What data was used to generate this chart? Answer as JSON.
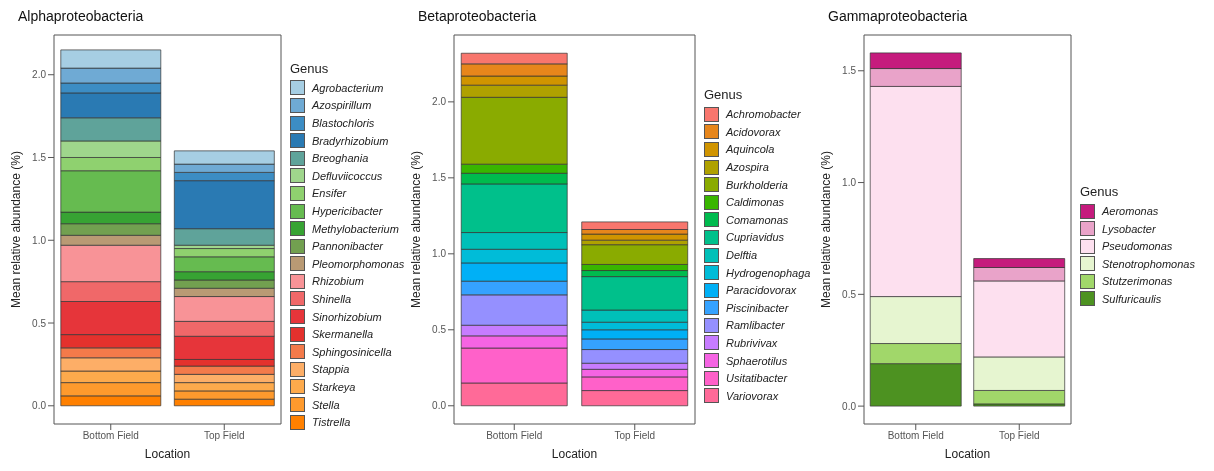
{
  "chart_data": [
    {
      "type": "bar",
      "stacked": true,
      "title": "Alphaproteobacteria",
      "xlabel": "Location",
      "ylabel": "Mean relative abundance (%)",
      "legend_title": "Genus",
      "legend": "right",
      "categories": [
        "Bottom Field",
        "Top Field"
      ],
      "ylim": [
        -0.11,
        2.24
      ],
      "yticks": [
        {
          "value": 0,
          "label": "0.0"
        },
        {
          "value": 0.5,
          "label": "0.5"
        },
        {
          "value": 1,
          "label": "1.0"
        },
        {
          "value": 1.5,
          "label": "1.5"
        },
        {
          "value": 2,
          "label": "2.0"
        }
      ],
      "series": [
        {
          "name": "Tistrella",
          "color": "#ff8000",
          "values": [
            0.06,
            0.04
          ]
        },
        {
          "name": "Stella",
          "color": "#fe9a2d",
          "values": [
            0.08,
            0.05
          ]
        },
        {
          "name": "Starkeya",
          "color": "#fdaa4c",
          "values": [
            0.07,
            0.05
          ]
        },
        {
          "name": "Stappia",
          "color": "#fdae67",
          "values": [
            0.08,
            0.05
          ]
        },
        {
          "name": "Sphingosinicella",
          "color": "#f37a4a",
          "values": [
            0.06,
            0.05
          ]
        },
        {
          "name": "Skermanella",
          "color": "#e4312d",
          "values": [
            0.08,
            0.04
          ]
        },
        {
          "name": "Sinorhizobium",
          "color": "#e6353a",
          "values": [
            0.2,
            0.14
          ]
        },
        {
          "name": "Shinella",
          "color": "#f06869",
          "values": [
            0.12,
            0.09
          ]
        },
        {
          "name": "Rhizobium",
          "color": "#f89397",
          "values": [
            0.22,
            0.15
          ]
        },
        {
          "name": "Pleomorphomonas",
          "color": "#b99a74",
          "values": [
            0.06,
            0.05
          ]
        },
        {
          "name": "Pannonibacter",
          "color": "#72a050",
          "values": [
            0.07,
            0.05
          ]
        },
        {
          "name": "Methylobacterium",
          "color": "#37a333",
          "values": [
            0.07,
            0.05
          ]
        },
        {
          "name": "Hypericibacter",
          "color": "#66bb50",
          "values": [
            0.25,
            0.09
          ]
        },
        {
          "name": "Ensifer",
          "color": "#8fd16f",
          "values": [
            0.08,
            0.05
          ]
        },
        {
          "name": "Defluviicoccus",
          "color": "#9fd68c",
          "values": [
            0.1,
            0.02
          ]
        },
        {
          "name": "Breoghania",
          "color": "#5fa39a",
          "values": [
            0.14,
            0.1
          ]
        },
        {
          "name": "Bradyrhizobium",
          "color": "#2a7ab3",
          "values": [
            0.15,
            0.29
          ]
        },
        {
          "name": "Blastochloris",
          "color": "#3c8dc4",
          "values": [
            0.06,
            0.05
          ]
        },
        {
          "name": "Azospirillum",
          "color": "#6faad4",
          "values": [
            0.09,
            0.05
          ]
        },
        {
          "name": "Agrobacterium",
          "color": "#a6cee3",
          "values": [
            0.11,
            0.08
          ]
        }
      ]
    },
    {
      "type": "bar",
      "stacked": true,
      "title": "Betaproteobacteria",
      "xlabel": "Location",
      "ylabel": "Mean relative abundance (%)",
      "legend_title": "Genus",
      "legend": "right",
      "categories": [
        "Bottom Field",
        "Top Field"
      ],
      "ylim": [
        -0.12,
        2.44
      ],
      "yticks": [
        {
          "value": 0,
          "label": "0.0"
        },
        {
          "value": 0.5,
          "label": "0.5"
        },
        {
          "value": 1,
          "label": "1.0"
        },
        {
          "value": 1.5,
          "label": "1.5"
        },
        {
          "value": 2,
          "label": "2.0"
        }
      ],
      "series": [
        {
          "name": "Variovorax",
          "color": "#ff6a98",
          "values": [
            0.15,
            0.1
          ]
        },
        {
          "name": "Usitatibacter",
          "color": "#ff61c9",
          "values": [
            0.23,
            0.09
          ]
        },
        {
          "name": "Sphaerotilus",
          "color": "#f564e3",
          "values": [
            0.08,
            0.05
          ]
        },
        {
          "name": "Rubrivivax",
          "color": "#c77cff",
          "values": [
            0.07,
            0.04
          ]
        },
        {
          "name": "Ramlibacter",
          "color": "#9590ff",
          "values": [
            0.2,
            0.09
          ]
        },
        {
          "name": "Piscinibacter",
          "color": "#35a2ff",
          "values": [
            0.09,
            0.07
          ]
        },
        {
          "name": "Paracidovorax",
          "color": "#00b0f6",
          "values": [
            0.12,
            0.06
          ]
        },
        {
          "name": "Hydrogenophaga",
          "color": "#00bcd8",
          "values": [
            0.09,
            0.05
          ]
        },
        {
          "name": "Delftia",
          "color": "#00c0b8",
          "values": [
            0.11,
            0.08
          ]
        },
        {
          "name": "Cupriavidus",
          "color": "#00c08b",
          "values": [
            0.32,
            0.22
          ]
        },
        {
          "name": "Comamonas",
          "color": "#00bb4e",
          "values": [
            0.07,
            0.04
          ]
        },
        {
          "name": "Caldimonas",
          "color": "#39b600",
          "values": [
            0.06,
            0.04
          ]
        },
        {
          "name": "Burkholderia",
          "color": "#8aab00",
          "values": [
            0.44,
            0.13
          ]
        },
        {
          "name": "Azospira",
          "color": "#afa100",
          "values": [
            0.08,
            0.03
          ]
        },
        {
          "name": "Aquincola",
          "color": "#d09400",
          "values": [
            0.06,
            0.04
          ]
        },
        {
          "name": "Acidovorax",
          "color": "#e7861b",
          "values": [
            0.08,
            0.03
          ]
        },
        {
          "name": "Achromobacter",
          "color": "#f8766d",
          "values": [
            0.07,
            0.05
          ]
        }
      ]
    },
    {
      "type": "bar",
      "stacked": true,
      "title": "Gammaproteobacteria",
      "xlabel": "Location",
      "ylabel": "Mean relative abundance (%)",
      "legend_title": "Genus",
      "legend": "right",
      "categories": [
        "Bottom Field",
        "Top Field"
      ],
      "ylim": [
        -0.08,
        1.66
      ],
      "yticks": [
        {
          "value": 0,
          "label": "0.0"
        },
        {
          "value": 0.5,
          "label": "0.5"
        },
        {
          "value": 1,
          "label": "1.0"
        },
        {
          "value": 1.5,
          "label": "1.5"
        }
      ],
      "series": [
        {
          "name": "Sulfuricaulis",
          "color": "#4d9221",
          "values": [
            0.19,
            0.01
          ]
        },
        {
          "name": "Stutzerimonas",
          "color": "#a1d76a",
          "values": [
            0.09,
            0.06
          ]
        },
        {
          "name": "Stenotrophomonas",
          "color": "#e6f5d0",
          "values": [
            0.21,
            0.15
          ]
        },
        {
          "name": "Pseudomonas",
          "color": "#fde0ef",
          "values": [
            0.94,
            0.34
          ]
        },
        {
          "name": "Lysobacter",
          "color": "#e9a3c9",
          "values": [
            0.08,
            0.06
          ]
        },
        {
          "name": "Aeromonas",
          "color": "#c51b7d",
          "values": [
            0.07,
            0.04
          ]
        }
      ]
    }
  ]
}
